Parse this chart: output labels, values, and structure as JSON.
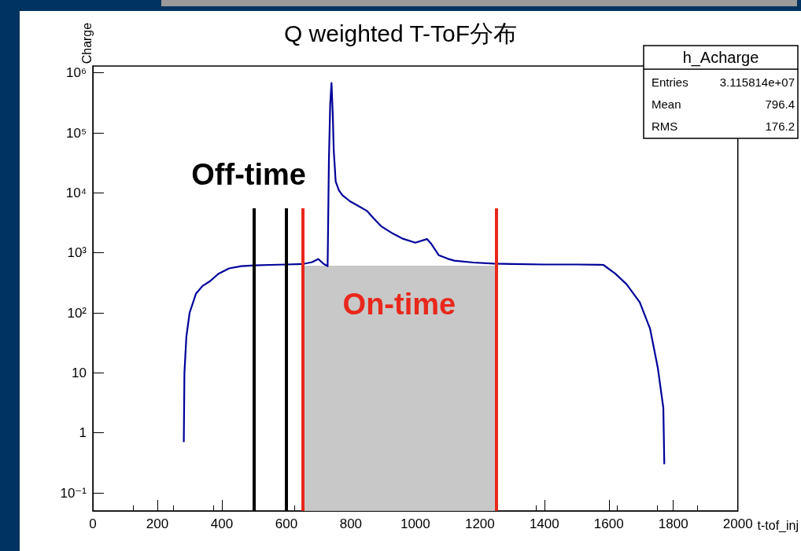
{
  "chart_data": {
    "type": "line",
    "title": "Q weighted T-ToF分布",
    "xlabel": "t-tof_inj",
    "ylabel": "Charge",
    "x": [
      282,
      284,
      290,
      300,
      320,
      340,
      364,
      390,
      422,
      460,
      500,
      550,
      600,
      650,
      680,
      699,
      715,
      728,
      732,
      736,
      740,
      744,
      747,
      753,
      763,
      774,
      798,
      820,
      850,
      870,
      895,
      930,
      959,
      1000,
      1036,
      1050,
      1073,
      1100,
      1121,
      1180,
      1243,
      1300,
      1400,
      1500,
      1583,
      1620,
      1655,
      1696,
      1728,
      1752,
      1769,
      1772
    ],
    "series": [
      {
        "color": "#000099",
        "values": [
          0.7,
          10,
          40,
          100,
          210,
          280,
          340,
          450,
          550,
          600,
          620,
          630,
          640,
          650,
          700,
          790,
          660,
          600,
          35000,
          300000,
          680000,
          200000,
          51000,
          15500,
          11000,
          9100,
          7200,
          6200,
          5000,
          3800,
          2750,
          2100,
          1740,
          1480,
          1700,
          1400,
          910,
          800,
          740,
          690,
          660,
          650,
          640,
          640,
          630,
          450,
          300,
          150,
          54,
          12,
          2.6,
          0.3
        ]
      }
    ],
    "log": "y",
    "xlim": [
      0,
      2000
    ],
    "xticks": [
      0,
      200,
      400,
      600,
      800,
      1000,
      1200,
      1400,
      1600,
      1800,
      2000
    ],
    "ylim": [
      0.05,
      1300000
    ],
    "yticks": [
      {
        "value": 0.1,
        "label": "10⁻¹"
      },
      1,
      10,
      {
        "value": 100,
        "label": "10²"
      },
      {
        "value": 1000,
        "label": "10³"
      },
      {
        "value": 10000,
        "label": "10⁴"
      },
      {
        "value": 100000,
        "label": "10⁵"
      },
      {
        "value": 1000000,
        "label": "10⁶"
      }
    ],
    "ref_lines": [
      {
        "axis": "x",
        "value": 500,
        "color": "#000000"
      },
      {
        "axis": "x",
        "value": 600,
        "color": "#000000"
      },
      {
        "axis": "x",
        "value": 650,
        "color": "#e8281c"
      },
      {
        "axis": "x",
        "value": 1250,
        "color": "#e8281c"
      }
    ],
    "bands": [
      {
        "axis": "x",
        "from": 650,
        "to": 1250,
        "color": "#c8c8c8"
      }
    ],
    "annotations": [
      "Off-time",
      "On-time",
      "h_Acharge",
      "Entries 3.115814e+07",
      "Mean 796.4",
      "RMS 176.2"
    ]
  }
}
